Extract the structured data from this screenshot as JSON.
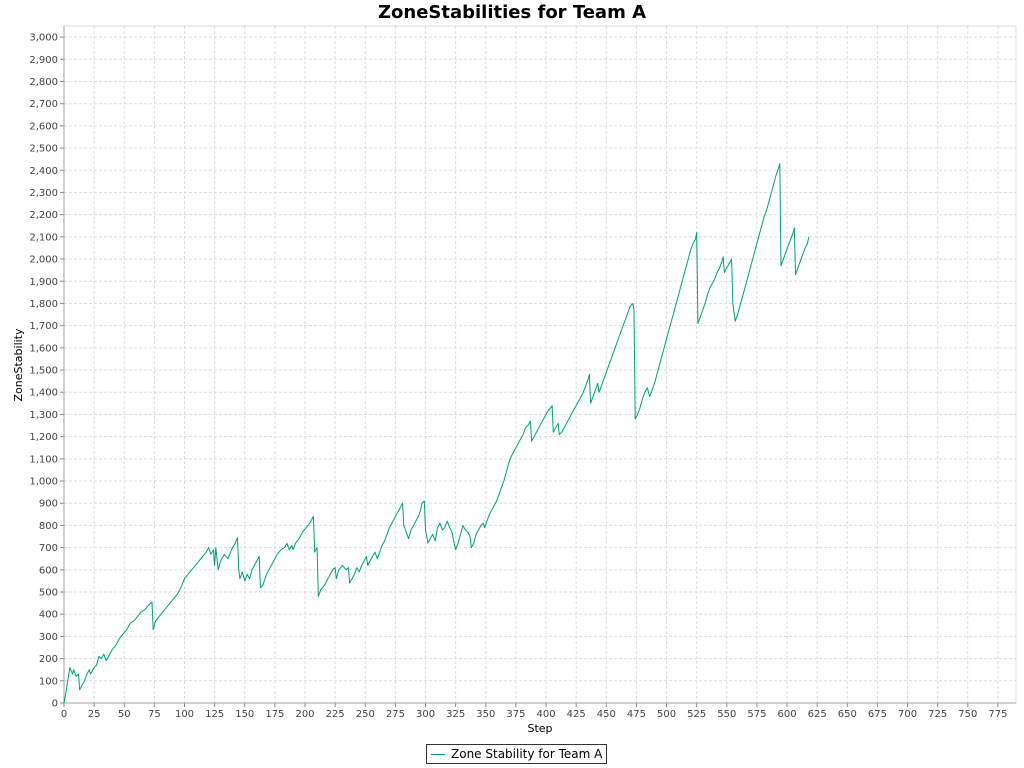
{
  "chart_data": {
    "type": "line",
    "title": "ZoneStabilities for Team A",
    "xlabel": "Step",
    "ylabel": "ZoneStability",
    "xlim": [
      0,
      790
    ],
    "ylim": [
      0,
      3050
    ],
    "x_ticks": [
      0,
      25,
      50,
      75,
      100,
      125,
      150,
      175,
      200,
      225,
      250,
      275,
      300,
      325,
      350,
      375,
      400,
      425,
      450,
      475,
      500,
      525,
      550,
      575,
      600,
      625,
      650,
      675,
      700,
      725,
      750,
      775
    ],
    "y_ticks": [
      0,
      100,
      200,
      300,
      400,
      500,
      600,
      700,
      800,
      900,
      1000,
      1100,
      1200,
      1300,
      1400,
      1500,
      1600,
      1700,
      1800,
      1900,
      2000,
      2100,
      2200,
      2300,
      2400,
      2500,
      2600,
      2700,
      2800,
      2900,
      3000
    ],
    "grid": true,
    "legend_position": "bottom-center",
    "series": [
      {
        "name": "Zone Stability for Team A",
        "color": "#00a07a",
        "points": [
          [
            0,
            0
          ],
          [
            2,
            60
          ],
          [
            4,
            130
          ],
          [
            5,
            160
          ],
          [
            7,
            130
          ],
          [
            8,
            150
          ],
          [
            10,
            120
          ],
          [
            12,
            130
          ],
          [
            13,
            60
          ],
          [
            15,
            80
          ],
          [
            17,
            100
          ],
          [
            19,
            130
          ],
          [
            21,
            150
          ],
          [
            22,
            130
          ],
          [
            25,
            160
          ],
          [
            27,
            170
          ],
          [
            29,
            210
          ],
          [
            31,
            200
          ],
          [
            33,
            220
          ],
          [
            35,
            190
          ],
          [
            37,
            210
          ],
          [
            40,
            240
          ],
          [
            43,
            260
          ],
          [
            46,
            290
          ],
          [
            49,
            310
          ],
          [
            52,
            330
          ],
          [
            55,
            360
          ],
          [
            58,
            370
          ],
          [
            61,
            390
          ],
          [
            64,
            410
          ],
          [
            67,
            420
          ],
          [
            70,
            440
          ],
          [
            73,
            455
          ],
          [
            74,
            330
          ],
          [
            76,
            370
          ],
          [
            79,
            390
          ],
          [
            82,
            410
          ],
          [
            85,
            430
          ],
          [
            88,
            450
          ],
          [
            91,
            470
          ],
          [
            94,
            490
          ],
          [
            97,
            520
          ],
          [
            100,
            560
          ],
          [
            103,
            580
          ],
          [
            106,
            600
          ],
          [
            109,
            620
          ],
          [
            112,
            640
          ],
          [
            115,
            660
          ],
          [
            118,
            680
          ],
          [
            120,
            700
          ],
          [
            122,
            670
          ],
          [
            124,
            690
          ],
          [
            125,
            620
          ],
          [
            126,
            700
          ],
          [
            128,
            600
          ],
          [
            130,
            640
          ],
          [
            133,
            670
          ],
          [
            136,
            650
          ],
          [
            139,
            690
          ],
          [
            142,
            720
          ],
          [
            144,
            745
          ],
          [
            145,
            600
          ],
          [
            146,
            560
          ],
          [
            148,
            590
          ],
          [
            150,
            550
          ],
          [
            152,
            580
          ],
          [
            154,
            560
          ],
          [
            156,
            600
          ],
          [
            158,
            620
          ],
          [
            160,
            640
          ],
          [
            162,
            660
          ],
          [
            163,
            520
          ],
          [
            165,
            530
          ],
          [
            168,
            580
          ],
          [
            171,
            610
          ],
          [
            174,
            640
          ],
          [
            177,
            670
          ],
          [
            180,
            690
          ],
          [
            183,
            700
          ],
          [
            185,
            720
          ],
          [
            187,
            690
          ],
          [
            189,
            710
          ],
          [
            190,
            690
          ],
          [
            192,
            720
          ],
          [
            195,
            740
          ],
          [
            198,
            770
          ],
          [
            201,
            790
          ],
          [
            204,
            810
          ],
          [
            206,
            830
          ],
          [
            207,
            840
          ],
          [
            208,
            680
          ],
          [
            210,
            700
          ],
          [
            211,
            480
          ],
          [
            213,
            510
          ],
          [
            216,
            530
          ],
          [
            219,
            560
          ],
          [
            221,
            580
          ],
          [
            223,
            600
          ],
          [
            225,
            610
          ],
          [
            226,
            560
          ],
          [
            228,
            600
          ],
          [
            231,
            620
          ],
          [
            234,
            600
          ],
          [
            236,
            610
          ],
          [
            237,
            540
          ],
          [
            239,
            560
          ],
          [
            241,
            580
          ],
          [
            243,
            610
          ],
          [
            245,
            590
          ],
          [
            247,
            620
          ],
          [
            249,
            640
          ],
          [
            251,
            660
          ],
          [
            252,
            620
          ],
          [
            254,
            640
          ],
          [
            256,
            660
          ],
          [
            258,
            680
          ],
          [
            260,
            650
          ],
          [
            262,
            680
          ],
          [
            264,
            710
          ],
          [
            266,
            730
          ],
          [
            268,
            760
          ],
          [
            270,
            790
          ],
          [
            273,
            820
          ],
          [
            276,
            850
          ],
          [
            279,
            880
          ],
          [
            281,
            900
          ],
          [
            282,
            800
          ],
          [
            284,
            770
          ],
          [
            286,
            740
          ],
          [
            288,
            780
          ],
          [
            291,
            810
          ],
          [
            294,
            840
          ],
          [
            296,
            870
          ],
          [
            297,
            900
          ],
          [
            299,
            910
          ],
          [
            300,
            780
          ],
          [
            302,
            720
          ],
          [
            304,
            740
          ],
          [
            306,
            760
          ],
          [
            308,
            730
          ],
          [
            310,
            790
          ],
          [
            312,
            810
          ],
          [
            314,
            780
          ],
          [
            316,
            790
          ],
          [
            318,
            820
          ],
          [
            320,
            790
          ],
          [
            322,
            770
          ],
          [
            323,
            740
          ],
          [
            325,
            690
          ],
          [
            327,
            720
          ],
          [
            329,
            760
          ],
          [
            331,
            800
          ],
          [
            333,
            780
          ],
          [
            335,
            770
          ],
          [
            337,
            750
          ],
          [
            338,
            700
          ],
          [
            340,
            720
          ],
          [
            342,
            760
          ],
          [
            344,
            780
          ],
          [
            346,
            800
          ],
          [
            348,
            810
          ],
          [
            349,
            790
          ],
          [
            351,
            820
          ],
          [
            353,
            850
          ],
          [
            355,
            870
          ],
          [
            357,
            890
          ],
          [
            359,
            910
          ],
          [
            361,
            940
          ],
          [
            363,
            970
          ],
          [
            365,
            1000
          ],
          [
            367,
            1040
          ],
          [
            369,
            1080
          ],
          [
            371,
            1110
          ],
          [
            373,
            1130
          ],
          [
            375,
            1150
          ],
          [
            377,
            1170
          ],
          [
            379,
            1190
          ],
          [
            381,
            1210
          ],
          [
            383,
            1240
          ],
          [
            385,
            1250
          ],
          [
            387,
            1270
          ],
          [
            388,
            1180
          ],
          [
            390,
            1200
          ],
          [
            392,
            1220
          ],
          [
            394,
            1240
          ],
          [
            396,
            1260
          ],
          [
            398,
            1280
          ],
          [
            400,
            1300
          ],
          [
            402,
            1320
          ],
          [
            404,
            1330
          ],
          [
            405,
            1340
          ],
          [
            406,
            1220
          ],
          [
            408,
            1240
          ],
          [
            410,
            1260
          ],
          [
            411,
            1210
          ],
          [
            413,
            1220
          ],
          [
            415,
            1240
          ],
          [
            417,
            1260
          ],
          [
            419,
            1280
          ],
          [
            421,
            1300
          ],
          [
            423,
            1320
          ],
          [
            425,
            1340
          ],
          [
            427,
            1360
          ],
          [
            429,
            1380
          ],
          [
            431,
            1400
          ],
          [
            433,
            1430
          ],
          [
            435,
            1460
          ],
          [
            436,
            1480
          ],
          [
            437,
            1350
          ],
          [
            439,
            1380
          ],
          [
            441,
            1410
          ],
          [
            443,
            1440
          ],
          [
            444,
            1400
          ],
          [
            446,
            1430
          ],
          [
            448,
            1460
          ],
          [
            450,
            1490
          ],
          [
            452,
            1520
          ],
          [
            454,
            1550
          ],
          [
            456,
            1580
          ],
          [
            458,
            1610
          ],
          [
            460,
            1640
          ],
          [
            462,
            1670
          ],
          [
            464,
            1700
          ],
          [
            466,
            1730
          ],
          [
            468,
            1760
          ],
          [
            470,
            1790
          ],
          [
            472,
            1800
          ],
          [
            473,
            1770
          ],
          [
            474,
            1280
          ],
          [
            476,
            1300
          ],
          [
            478,
            1330
          ],
          [
            480,
            1370
          ],
          [
            482,
            1400
          ],
          [
            484,
            1420
          ],
          [
            486,
            1380
          ],
          [
            488,
            1410
          ],
          [
            490,
            1440
          ],
          [
            492,
            1480
          ],
          [
            494,
            1520
          ],
          [
            496,
            1560
          ],
          [
            498,
            1600
          ],
          [
            500,
            1640
          ],
          [
            502,
            1680
          ],
          [
            504,
            1720
          ],
          [
            506,
            1760
          ],
          [
            508,
            1800
          ],
          [
            510,
            1840
          ],
          [
            512,
            1880
          ],
          [
            514,
            1920
          ],
          [
            516,
            1960
          ],
          [
            518,
            2000
          ],
          [
            520,
            2040
          ],
          [
            522,
            2070
          ],
          [
            524,
            2090
          ],
          [
            525,
            2120
          ],
          [
            526,
            1710
          ],
          [
            528,
            1740
          ],
          [
            530,
            1770
          ],
          [
            532,
            1800
          ],
          [
            534,
            1840
          ],
          [
            536,
            1870
          ],
          [
            538,
            1890
          ],
          [
            540,
            1910
          ],
          [
            542,
            1940
          ],
          [
            544,
            1960
          ],
          [
            546,
            1990
          ],
          [
            547,
            2010
          ],
          [
            548,
            1940
          ],
          [
            550,
            1960
          ],
          [
            552,
            1980
          ],
          [
            554,
            2000
          ],
          [
            555,
            1800
          ],
          [
            557,
            1720
          ],
          [
            559,
            1750
          ],
          [
            561,
            1790
          ],
          [
            563,
            1830
          ],
          [
            565,
            1870
          ],
          [
            567,
            1910
          ],
          [
            569,
            1950
          ],
          [
            571,
            1990
          ],
          [
            573,
            2030
          ],
          [
            575,
            2070
          ],
          [
            577,
            2110
          ],
          [
            579,
            2150
          ],
          [
            581,
            2190
          ],
          [
            583,
            2220
          ],
          [
            585,
            2260
          ],
          [
            587,
            2300
          ],
          [
            589,
            2340
          ],
          [
            591,
            2380
          ],
          [
            593,
            2410
          ],
          [
            594,
            2430
          ],
          [
            595,
            1970
          ],
          [
            597,
            2000
          ],
          [
            599,
            2030
          ],
          [
            601,
            2060
          ],
          [
            603,
            2090
          ],
          [
            605,
            2120
          ],
          [
            606,
            2140
          ],
          [
            607,
            1930
          ],
          [
            609,
            1960
          ],
          [
            611,
            1990
          ],
          [
            613,
            2020
          ],
          [
            615,
            2050
          ],
          [
            617,
            2070
          ],
          [
            618,
            2100
          ]
        ]
      }
    ]
  },
  "legend": {
    "label": "Zone Stability for Team A"
  }
}
